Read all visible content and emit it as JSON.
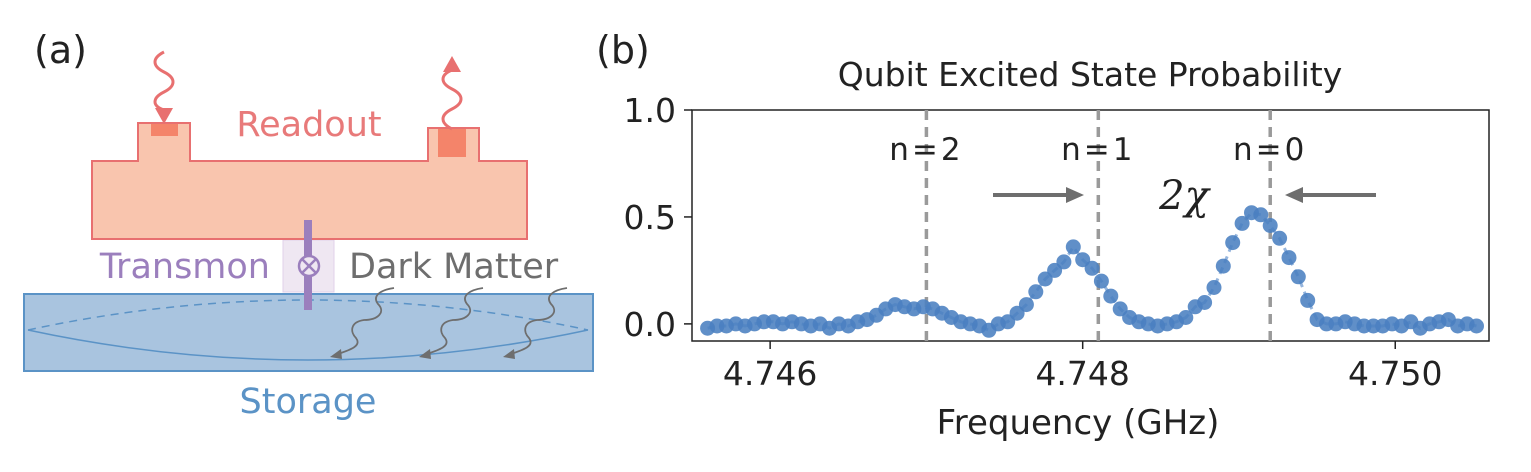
{
  "panel_a": {
    "label": "(a)",
    "readout_label": "Readout",
    "transmon_label": "Transmon",
    "dark_matter_label": "Dark Matter",
    "storage_label": "Storage",
    "colors": {
      "readout_fill": "#f9c5ae",
      "readout_stroke": "#e87070",
      "readout_port": "#f4846a",
      "readout_text": "#e87a7a",
      "storage_fill": "#a9c4df",
      "storage_stroke": "#5b93c6",
      "storage_text": "#5b93c6",
      "transmon": "#9b7fbd",
      "dark_matter": "#6e6e6e"
    }
  },
  "panel_b": {
    "label": "(b)",
    "annotation_chi": "2χ",
    "peak_labels": [
      {
        "text": "n=2",
        "x": 4.747
      },
      {
        "text": "n=1",
        "x": 4.7481
      },
      {
        "text": "n=0",
        "x": 4.7492
      }
    ],
    "colors": {
      "points": "#4a7fc0",
      "line": "#7aa3d4",
      "vline": "#9a9a9a",
      "arrow": "#6e6e6e"
    }
  },
  "chart_data": {
    "type": "scatter",
    "title": "Qubit Excited State Probability",
    "xlabel": "Frequency (GHz)",
    "ylabel": "",
    "xlim": [
      4.7455,
      4.7506
    ],
    "ylim": [
      -0.08,
      1.0
    ],
    "xticks": [
      4.746,
      4.748,
      4.75
    ],
    "xtick_labels": [
      "4.746",
      "4.748",
      "4.750"
    ],
    "yticks": [
      0.0,
      0.5,
      1.0
    ],
    "ytick_labels": [
      "0.0",
      "0.5",
      "1.0"
    ],
    "grid": false,
    "series": [
      {
        "x": [
          4.7456,
          4.74566,
          4.74572,
          4.74578,
          4.74584,
          4.7459,
          4.74596,
          4.74602,
          4.74608,
          4.74614,
          4.7462,
          4.74626,
          4.74632,
          4.74638,
          4.74644,
          4.7465,
          4.74656,
          4.74662,
          4.74668,
          4.74674,
          4.7468,
          4.74686,
          4.74692,
          4.74698,
          4.74704,
          4.7471,
          4.74716,
          4.74722,
          4.74728,
          4.74734,
          4.7474,
          4.74746,
          4.74752,
          4.74758,
          4.74764,
          4.7477,
          4.74776,
          4.74782,
          4.74788,
          4.74794,
          4.748,
          4.74806,
          4.74812,
          4.74818,
          4.74824,
          4.7483,
          4.74836,
          4.74842,
          4.74848,
          4.74854,
          4.7486,
          4.74866,
          4.74872,
          4.74878,
          4.74884,
          4.7489,
          4.74896,
          4.74902,
          4.74908,
          4.74914,
          4.7492,
          4.74926,
          4.74932,
          4.74938,
          4.74944,
          4.7495,
          4.74956,
          4.74962,
          4.74968,
          4.74974,
          4.7498,
          4.74986,
          4.74992,
          4.74998,
          4.75004,
          4.7501,
          4.75016,
          4.75022,
          4.75028,
          4.75034,
          4.7504,
          4.75046,
          4.75052
        ],
        "y": [
          -0.02,
          -0.01,
          -0.01,
          0.0,
          -0.01,
          0.0,
          0.01,
          0.01,
          0.0,
          0.01,
          0.0,
          -0.01,
          0.0,
          -0.02,
          0.0,
          -0.01,
          0.01,
          0.02,
          0.04,
          0.07,
          0.09,
          0.08,
          0.07,
          0.08,
          0.07,
          0.05,
          0.03,
          0.01,
          0.0,
          -0.01,
          -0.03,
          0.0,
          0.01,
          0.05,
          0.09,
          0.15,
          0.21,
          0.25,
          0.29,
          0.36,
          0.3,
          0.26,
          0.2,
          0.13,
          0.07,
          0.03,
          0.01,
          0.0,
          -0.01,
          0.0,
          0.01,
          0.03,
          0.08,
          0.1,
          0.17,
          0.27,
          0.38,
          0.47,
          0.52,
          0.51,
          0.46,
          0.4,
          0.31,
          0.22,
          0.11,
          0.02,
          0.0,
          0.0,
          0.01,
          0.0,
          -0.01,
          -0.01,
          -0.01,
          0.0,
          -0.01,
          0.01,
          -0.02,
          0.0,
          0.01,
          0.02,
          -0.01,
          0.0,
          -0.01
        ]
      }
    ]
  }
}
